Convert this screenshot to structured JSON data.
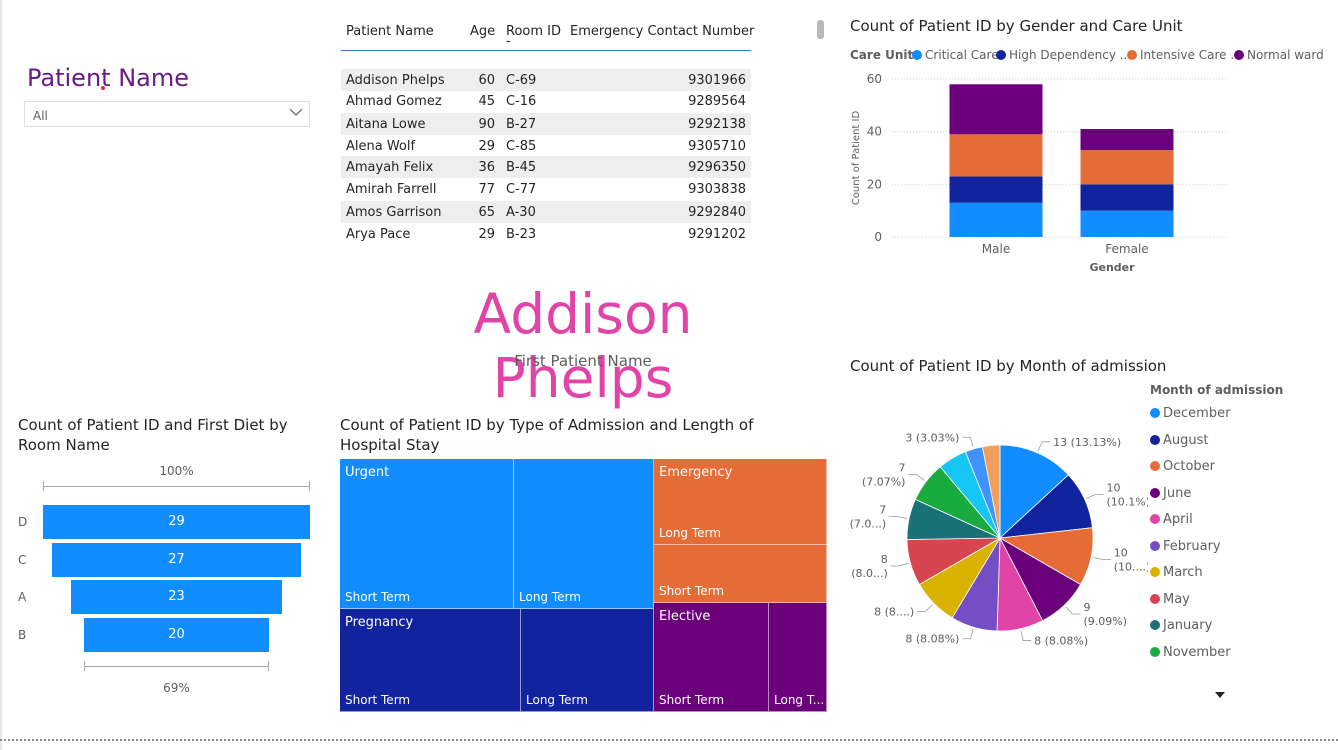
{
  "slicer": {
    "title": "Patient Name",
    "value": "All"
  },
  "table": {
    "columns": [
      "Patient Name",
      "Age",
      "Room ID",
      "Emergency Contact Number"
    ],
    "rows": [
      [
        "",
        "",
        "-",
        ""
      ],
      [
        "Addison Phelps",
        "60",
        "C-69",
        "9301966"
      ],
      [
        "Ahmad Gomez",
        "45",
        "C-16",
        "9289564"
      ],
      [
        "Aitana Lowe",
        "90",
        "B-27",
        "9292138"
      ],
      [
        "Alena Wolf",
        "29",
        "C-85",
        "9305710"
      ],
      [
        "Amayah Felix",
        "36",
        "B-45",
        "9296350"
      ],
      [
        "Amirah Farrell",
        "77",
        "C-77",
        "9303838"
      ],
      [
        "Amos Garrison",
        "65",
        "A-30",
        "9292840"
      ],
      [
        "Arya Pace",
        "29",
        "B-23",
        "9291202"
      ]
    ]
  },
  "card": {
    "value": "Addison Phelps",
    "label": "First Patient Name"
  },
  "funnel": {
    "title_line1": "Count of Patient ID and First Diet by",
    "title_line2": "Room Name",
    "top_pct": "100%",
    "bottom_pct": "69%",
    "color": "#118dff"
  },
  "treemap": {
    "title_line1": "Count of Patient ID by Type of Admission and Length of",
    "title_line2": "Hospital Stay",
    "groups": [
      {
        "name": "Urgent",
        "color": "#118dff",
        "children": [
          "Short Term",
          "Long Term"
        ]
      },
      {
        "name": "Pregnancy",
        "color": "#12239e",
        "children": [
          "Short Term",
          "Long Term"
        ]
      },
      {
        "name": "Emergency",
        "color": "#e66c37",
        "children": [
          "Long Term",
          "Short Term"
        ]
      },
      {
        "name": "Elective",
        "color": "#6b007b",
        "children": [
          "Short Term",
          "Long T..."
        ]
      }
    ]
  },
  "legend_care": {
    "title": "Care Unit",
    "items": [
      {
        "label": "Critical Care",
        "color": "#118dff"
      },
      {
        "label": "High Dependency ...",
        "color": "#12239e"
      },
      {
        "label": "Intensive Care ...",
        "color": "#e66c37"
      },
      {
        "label": "Normal ward",
        "color": "#6b007b"
      }
    ]
  },
  "legend_month": {
    "title": "Month of admission",
    "items": [
      {
        "label": "December",
        "color": "#118dff"
      },
      {
        "label": "August",
        "color": "#12239e"
      },
      {
        "label": "October",
        "color": "#e66c37"
      },
      {
        "label": "June",
        "color": "#6b007b"
      },
      {
        "label": "April",
        "color": "#e044a7"
      },
      {
        "label": "February",
        "color": "#744ec2"
      },
      {
        "label": "March",
        "color": "#d9b300"
      },
      {
        "label": "May",
        "color": "#d64550"
      },
      {
        "label": "January",
        "color": "#197278"
      },
      {
        "label": "November",
        "color": "#1aab40"
      }
    ]
  },
  "chart_data": [
    {
      "type": "bar",
      "title": "Count of Patient ID by Gender and Care Unit",
      "xlabel": "Gender",
      "ylabel": "Count of Patient ID",
      "ylim": [
        0,
        60
      ],
      "yticks": [
        0,
        20,
        40,
        60
      ],
      "stacked": true,
      "grid": true,
      "legend_position": "top",
      "categories": [
        "Male",
        "Female"
      ],
      "series": [
        {
          "name": "Critical Care",
          "color": "#118dff",
          "values": [
            13,
            10
          ]
        },
        {
          "name": "High Dependency ...",
          "color": "#12239e",
          "values": [
            10,
            10
          ]
        },
        {
          "name": "Intensive Care ...",
          "color": "#e66c37",
          "values": [
            16,
            13
          ]
        },
        {
          "name": "Normal ward",
          "color": "#6b007b",
          "values": [
            19,
            8
          ]
        }
      ]
    },
    {
      "type": "pie",
      "title": "Count of Patient ID by Month of admission",
      "legend_position": "right",
      "slices": [
        {
          "label": "December",
          "value": 13,
          "text": "13 (13.13%)",
          "color": "#118dff"
        },
        {
          "label": "August",
          "value": 10,
          "text": "10\n(10.1%)",
          "color": "#12239e"
        },
        {
          "label": "October",
          "value": 10,
          "text": "10\n(10....)",
          "color": "#e66c37"
        },
        {
          "label": "June",
          "value": 9,
          "text": "9\n(9.09%)",
          "color": "#6b007b"
        },
        {
          "label": "April",
          "value": 8,
          "text": "8 (8.08%)",
          "color": "#e044a7"
        },
        {
          "label": "February",
          "value": 8,
          "text": "8 (8.08%)",
          "color": "#744ec2"
        },
        {
          "label": "March",
          "value": 8,
          "text": "8 (8....)",
          "color": "#d9b300"
        },
        {
          "label": "May",
          "value": 8,
          "text": "8\n(8.0...)",
          "color": "#d64550"
        },
        {
          "label": "January",
          "value": 7,
          "text": "7\n(7.0...)",
          "color": "#197278"
        },
        {
          "label": "November",
          "value": 7,
          "text": "7\n(7.07%)",
          "color": "#1aab40"
        },
        {
          "label": "",
          "value": 5,
          "text": "",
          "color": "#15c6f4"
        },
        {
          "label": "",
          "value": 3,
          "text": "3 (3.03%)",
          "color": "#4092ff"
        },
        {
          "label": "",
          "value": 3,
          "text": "",
          "color": "#f0a05c"
        }
      ]
    },
    {
      "type": "bar",
      "title": "Count of Patient ID and First Diet by Room Name",
      "categories": [
        "D",
        "C",
        "A",
        "B"
      ],
      "values": [
        29,
        27,
        23,
        20
      ]
    }
  ]
}
